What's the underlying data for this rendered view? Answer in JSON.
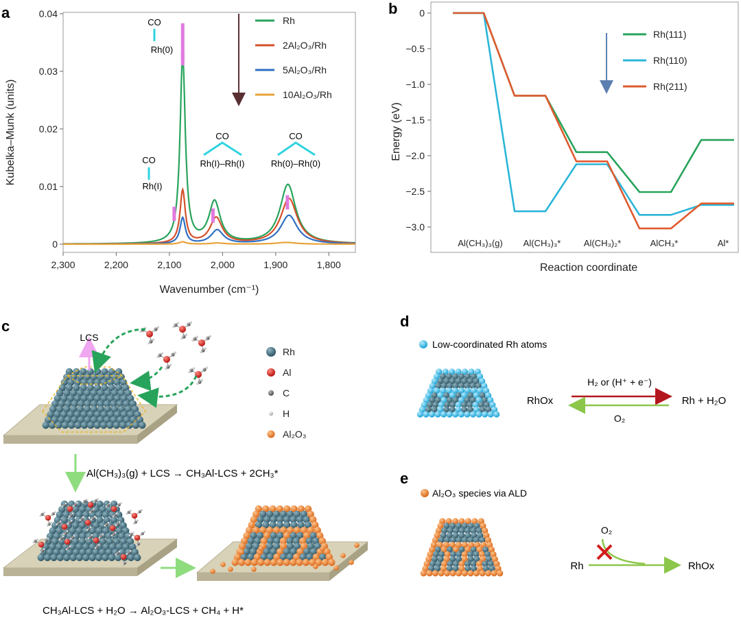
{
  "panels": {
    "a": {
      "label": "a",
      "annotations": {
        "co": "CO",
        "rh0": "Rh(0)",
        "rh1": "Rh(I)",
        "rh1rh1": "Rh(I)–Rh(I)",
        "rh0rh0": "Rh(0)–Rh(0)"
      }
    },
    "b": {
      "label": "b"
    },
    "c": {
      "label": "c",
      "lcs": "LCS",
      "legend": [
        {
          "key": "rh",
          "label": "Rh",
          "color": "#3e6878"
        },
        {
          "key": "al",
          "label": "Al",
          "color": "#d8261f"
        },
        {
          "key": "c",
          "label": "C",
          "color": "#6a6a6a"
        },
        {
          "key": "h",
          "label": "H",
          "color": "#c8c8c8"
        },
        {
          "key": "al2o3",
          "label": "Al₂O₃",
          "color": "#e27a2a"
        }
      ],
      "reaction1": "Al(CH₃)₃(g) + LCS → CH₃Al-LCS + 2CH₃*",
      "reaction2": "CH₃Al-LCS + H₂O → Al₂O₃-LCS + CH₄ + H*"
    },
    "d": {
      "label": "d",
      "legend": "Low-coordinated Rh atoms",
      "left": "RhOx",
      "top": "H₂ or (H⁺ + e⁻)",
      "right": "Rh + H₂O",
      "bottom": "O₂"
    },
    "e": {
      "label": "e",
      "legend": "Al₂O₃ species via ALD",
      "o2": "O₂",
      "rh": "Rh",
      "product": "RhOx"
    }
  },
  "chart_data": [
    {
      "panel": "a",
      "type": "line",
      "xlabel": "Wavenumber (cm⁻¹)",
      "ylabel": "Kubelka–Munk (units)",
      "xlim": [
        2300,
        1750
      ],
      "ylim": [
        0,
        0.04
      ],
      "x_reversed": true,
      "x_ticks": [
        2300,
        2200,
        2100,
        2000,
        1900,
        1800
      ],
      "x_tick_labels": [
        "2,300",
        "2,200",
        "2,100",
        "2,000",
        "1,900",
        "1,800"
      ],
      "y_ticks": [
        0,
        0.01,
        0.02,
        0.03,
        0.04
      ],
      "y_tick_labels": [
        "0",
        "0.01",
        "0.02",
        "0.03",
        "0.04"
      ],
      "legend_position": "top-right",
      "series": [
        {
          "name": "Rh",
          "color": "#27a35b",
          "peaks": [
            {
              "x": 2075,
              "height": 0.0325,
              "width": 6
            },
            {
              "x": 2015,
              "height": 0.0072,
              "width": 13
            },
            {
              "x": 1877,
              "height": 0.0103,
              "width": 18
            }
          ]
        },
        {
          "name": "2Al₂O₃/Rh",
          "color": "#d4502a",
          "peaks": [
            {
              "x": 2075,
              "height": 0.0092,
              "width": 6
            },
            {
              "x": 2012,
              "height": 0.0045,
              "width": 14
            },
            {
              "x": 1875,
              "height": 0.0079,
              "width": 19
            }
          ]
        },
        {
          "name": "5Al₂O₃/Rh",
          "color": "#2e6fc2",
          "peaks": [
            {
              "x": 2075,
              "height": 0.0045,
              "width": 6
            },
            {
              "x": 2010,
              "height": 0.0024,
              "width": 14
            },
            {
              "x": 1875,
              "height": 0.005,
              "width": 19
            }
          ]
        },
        {
          "name": "10Al₂O₃/Rh",
          "color": "#e8a33a",
          "peaks": [
            {
              "x": 2075,
              "height": 0.0004,
              "width": 8
            },
            {
              "x": 2010,
              "height": 0.0002,
              "width": 15
            },
            {
              "x": 1880,
              "height": 0.0003,
              "width": 22
            }
          ]
        }
      ]
    },
    {
      "panel": "b",
      "type": "line",
      "xlabel": "Reaction coordinate",
      "ylabel": "Energy (eV)",
      "ylim": [
        -3.3,
        0.1
      ],
      "y_ticks": [
        0,
        -0.5,
        -1.0,
        -1.5,
        -2.0,
        -2.5,
        -3.0
      ],
      "y_tick_labels": [
        "0",
        "−0.5",
        "−1.0",
        "−1.5",
        "−2.0",
        "−2.5",
        "−3.0"
      ],
      "categories": [
        "Al(CH₃)₃(g)",
        "Al(CH₃)₃*",
        "Al(CH₃)₂*",
        "AlCH₃*",
        "Al*"
      ],
      "legend_position": "top-right",
      "series": [
        {
          "name": "Rh(111)",
          "color": "#27a35b",
          "values": [
            0,
            -1.16,
            -1.95,
            -2.51,
            -1.78
          ]
        },
        {
          "name": "Rh(110)",
          "color": "#2bb5d8",
          "values": [
            0,
            -2.78,
            -2.12,
            -2.83,
            -2.69
          ]
        },
        {
          "name": "Rh(211)",
          "color": "#df5a2f",
          "values": [
            0,
            -1.16,
            -2.08,
            -3.02,
            -2.67
          ]
        }
      ]
    }
  ]
}
